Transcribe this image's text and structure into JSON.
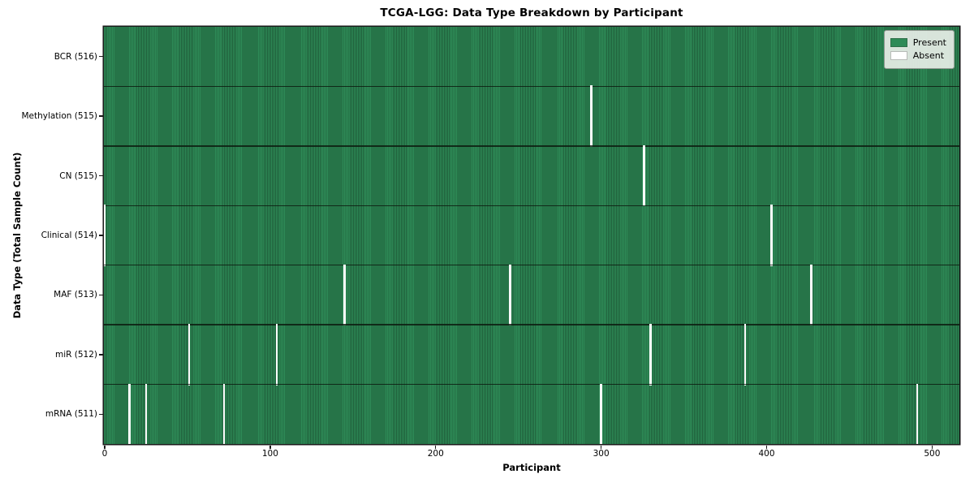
{
  "chart_data": {
    "type": "heatmap",
    "title": "TCGA-LGG: Data Type Breakdown by Participant",
    "xlabel": "Participant",
    "ylabel": "Data Type (Total Sample Count)",
    "x_ticks": [
      0,
      100,
      200,
      300,
      400,
      500
    ],
    "x_domain": [
      -0.5,
      516.5
    ],
    "n_participants": 516,
    "grid": false,
    "legend_position": "upper right",
    "legend": [
      {
        "label": "Present",
        "color": "#2e8b57"
      },
      {
        "label": "Absent",
        "color": "#ffffff"
      }
    ],
    "colors": {
      "present_stripe_bright": "#2e8b57",
      "present_stripe_dark": "#1f5e3a",
      "absent": "#fafafa",
      "row_divider": "rgba(12,24,15,0.82)",
      "frame": "#1a1a1a"
    },
    "rows": [
      {
        "id": "bcr",
        "label": "BCR (516)",
        "data_type": "BCR",
        "present_count": 516,
        "absent_participants": []
      },
      {
        "id": "methylation",
        "label": "Methylation (515)",
        "data_type": "Methylation",
        "present_count": 515,
        "absent_participants": [
          294
        ]
      },
      {
        "id": "cn",
        "label": "CN (515)",
        "data_type": "CN",
        "present_count": 515,
        "absent_participants": [
          326
        ]
      },
      {
        "id": "clinical",
        "label": "Clinical (514)",
        "data_type": "Clinical",
        "present_count": 514,
        "absent_participants": [
          0,
          403
        ]
      },
      {
        "id": "maf",
        "label": "MAF (513)",
        "data_type": "MAF",
        "present_count": 513,
        "absent_participants": [
          145,
          245,
          427
        ]
      },
      {
        "id": "mir",
        "label": "miR (512)",
        "data_type": "miR",
        "present_count": 512,
        "absent_participants": [
          51,
          104,
          330,
          387
        ]
      },
      {
        "id": "mrna",
        "label": "mRNA (511)",
        "data_type": "mRNA",
        "present_count": 511,
        "absent_participants": [
          15,
          25,
          72,
          300,
          491
        ]
      }
    ]
  }
}
